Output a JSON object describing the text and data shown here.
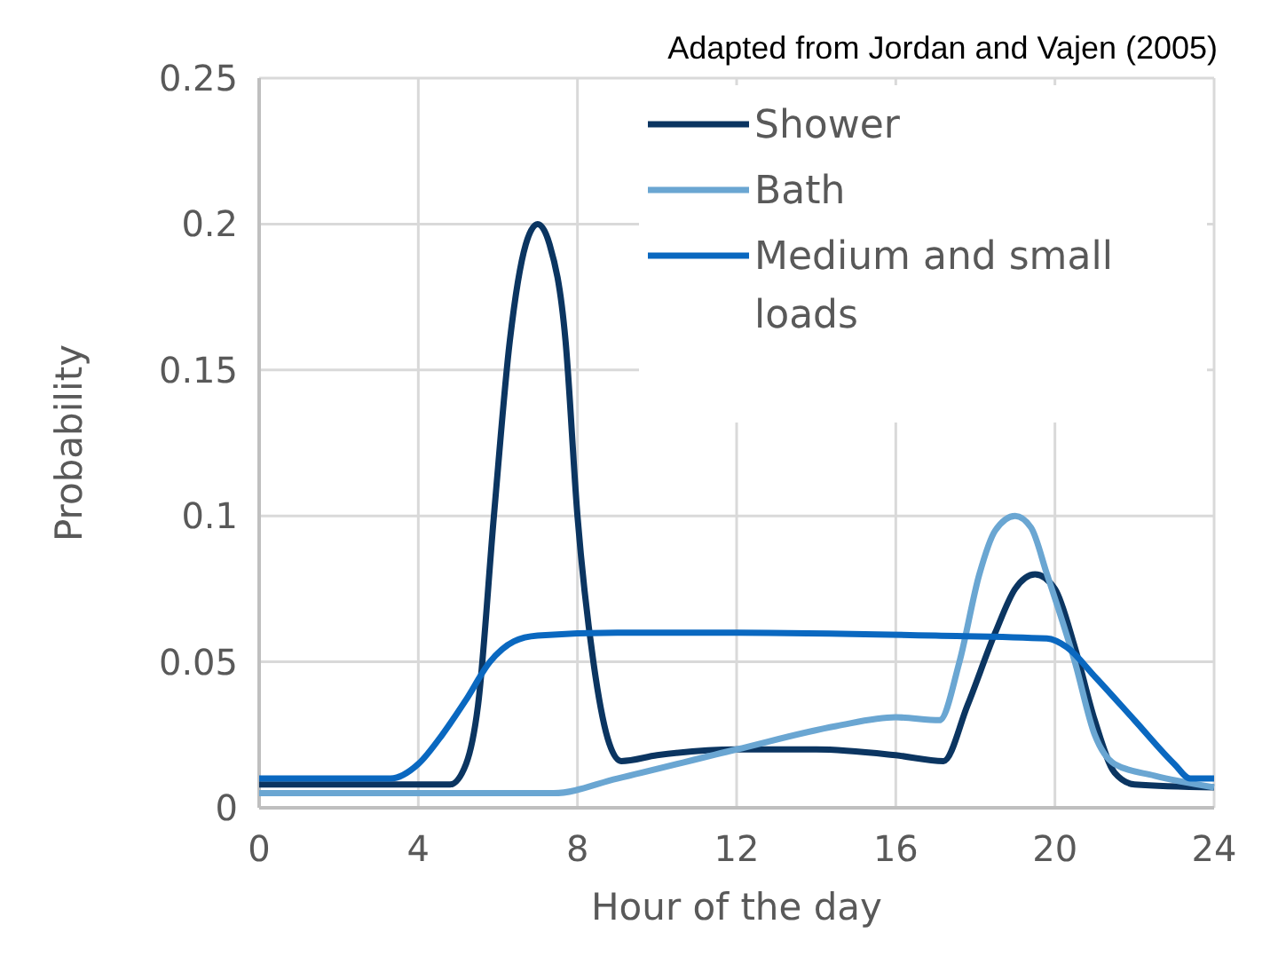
{
  "chart_data": {
    "type": "line",
    "xlabel": "Hour of the day",
    "ylabel": "Probability",
    "annotations": [
      "Adapted from Jordan and Vajen (2005)"
    ],
    "xlim": [
      0,
      24
    ],
    "xticks": [
      0,
      4,
      8,
      12,
      16,
      20,
      24
    ],
    "ylim": [
      0,
      0.25
    ],
    "yticks": [
      0,
      0.05,
      0.1,
      0.15,
      0.2,
      0.25
    ],
    "grid": true,
    "legend": "top right",
    "marker": "none",
    "line_style": "solid",
    "series": [
      {
        "name": "Shower",
        "color": "#0b3561",
        "x": [
          0,
          4.8,
          5.2,
          5.5,
          5.9,
          6.3,
          6.7,
          7,
          7.3,
          7.7,
          8,
          8.4,
          8.8,
          9.1,
          10,
          12,
          14,
          16,
          17.2,
          17.8,
          18.5,
          19,
          19.5,
          20,
          20.5,
          21,
          21.5,
          22,
          24
        ],
        "values": [
          0.008,
          0.008,
          0.015,
          0.035,
          0.1,
          0.16,
          0.193,
          0.2,
          0.193,
          0.16,
          0.1,
          0.05,
          0.022,
          0.016,
          0.018,
          0.02,
          0.02,
          0.018,
          0.016,
          0.035,
          0.06,
          0.075,
          0.08,
          0.075,
          0.055,
          0.03,
          0.012,
          0.008,
          0.007
        ]
      },
      {
        "name": "Bath",
        "color": "#6aa6d2",
        "x": [
          0,
          7.4,
          9,
          12,
          14.5,
          16,
          17.1,
          17.6,
          18.1,
          18.5,
          19,
          19.4,
          19.8,
          20.5,
          21,
          21.5,
          22.5,
          24
        ],
        "values": [
          0.005,
          0.005,
          0.01,
          0.02,
          0.028,
          0.031,
          0.03,
          0.05,
          0.08,
          0.095,
          0.1,
          0.096,
          0.08,
          0.05,
          0.025,
          0.015,
          0.011,
          0.007
        ]
      },
      {
        "name": "Medium and small loads",
        "color": "#0a68c0",
        "x": [
          0,
          3.3,
          4,
          4.6,
          5.2,
          5.8,
          6.4,
          7,
          9,
          12,
          17,
          19.8,
          20.3,
          21,
          22,
          23,
          23.4,
          24
        ],
        "values": [
          0.01,
          0.01,
          0.015,
          0.025,
          0.037,
          0.05,
          0.057,
          0.059,
          0.06,
          0.06,
          0.059,
          0.058,
          0.055,
          0.045,
          0.03,
          0.015,
          0.01,
          0.01
        ]
      }
    ]
  }
}
